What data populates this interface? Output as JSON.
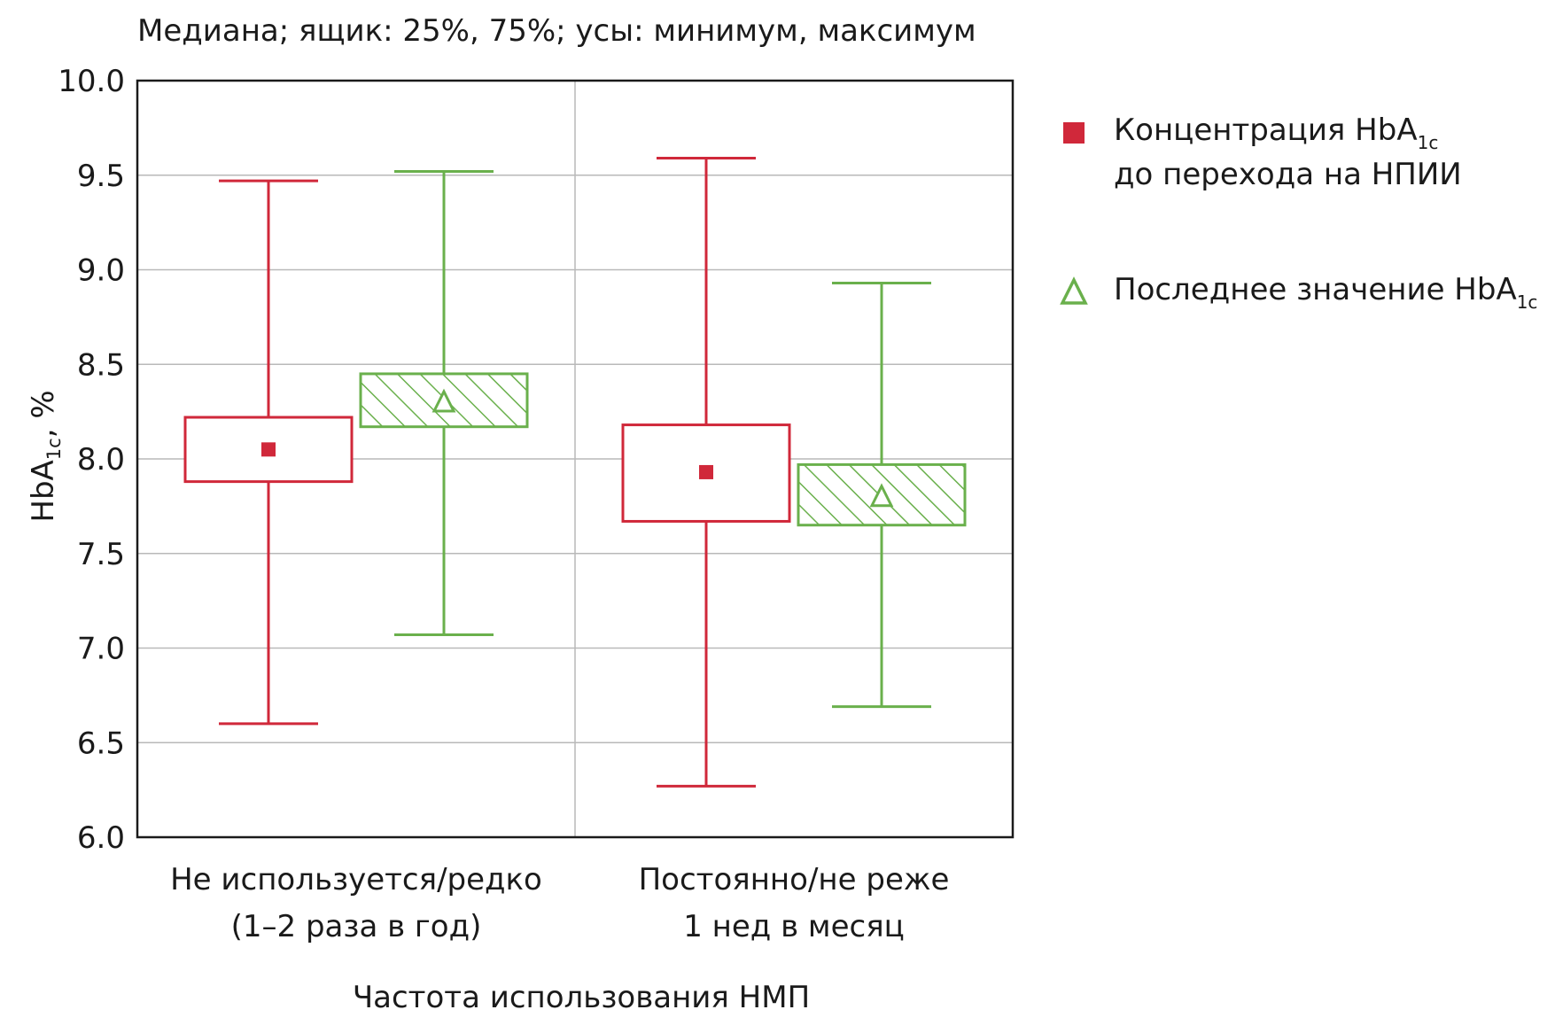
{
  "chart_data": {
    "type": "box",
    "title": "Медиана; ящик: 25%, 75%; усы: минимум, максимум",
    "ylabel": {
      "main": "HbA",
      "sub": "1c",
      "suffix": ", %"
    },
    "xlabel": "Частота использования НМП",
    "ylim": [
      6.0,
      10.0
    ],
    "yticks": [
      6.0,
      6.5,
      7.0,
      7.5,
      8.0,
      8.5,
      9.0,
      9.5,
      10.0
    ],
    "ytick_labels": [
      "6.0",
      "6.5",
      "7.0",
      "7.5",
      "8.0",
      "8.5",
      "9.0",
      "9.5",
      "10.0"
    ],
    "grid": true,
    "legend_position": "right",
    "categories": [
      {
        "lines": [
          "Не используется/редко",
          "(1–2 раза в год)"
        ]
      },
      {
        "lines": [
          "Постоянно/не реже",
          "1 нед в месяц"
        ]
      }
    ],
    "series": [
      {
        "key": "before",
        "legend_lines": [
          {
            "main": "Концентрация HbA",
            "sub": "1c"
          },
          {
            "main": "до перехода на НПИИ",
            "sub": ""
          }
        ],
        "marker": "square",
        "color": "#d0283a",
        "hatched": false,
        "boxes": [
          {
            "min": 6.6,
            "q1": 7.88,
            "median": 8.05,
            "q3": 8.22,
            "max": 9.47
          },
          {
            "min": 6.27,
            "q1": 7.67,
            "median": 7.93,
            "q3": 8.18,
            "max": 9.59
          }
        ]
      },
      {
        "key": "last",
        "legend_lines": [
          {
            "main": "Последнее значение HbA",
            "sub": "1c"
          }
        ],
        "marker": "triangle",
        "color": "#6ab04c",
        "hatched": true,
        "boxes": [
          {
            "min": 7.07,
            "q1": 8.17,
            "median": 8.3,
            "q3": 8.45,
            "max": 9.52
          },
          {
            "min": 6.69,
            "q1": 7.65,
            "median": 7.8,
            "q3": 7.97,
            "max": 8.93
          }
        ]
      }
    ]
  }
}
